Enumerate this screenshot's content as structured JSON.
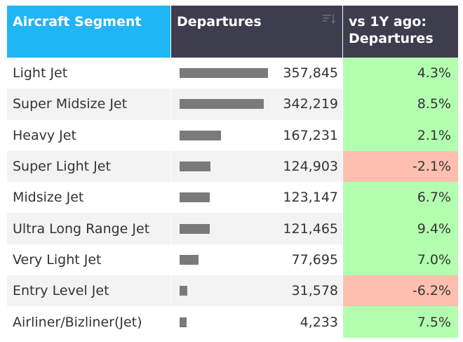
{
  "colors": {
    "header_segment_bg": "#1fb6f5",
    "header_dark_bg": "#3e3d4d",
    "bar": "#7a7a7a",
    "positive": "#b3ffb0",
    "negative": "#ffbfb0"
  },
  "header": {
    "segment": "Aircraft Segment",
    "departures": "Departures",
    "yoy_line1": "vs 1Y ago:",
    "yoy_line2": "Departures",
    "sort_icon": "sort-descending-icon"
  },
  "rows": [
    {
      "segment": "Light Jet",
      "departures": "357,845",
      "value": 357845,
      "yoy": "4.3%",
      "trend": "pos"
    },
    {
      "segment": "Super Midsize Jet",
      "departures": "342,219",
      "value": 342219,
      "yoy": "8.5%",
      "trend": "pos"
    },
    {
      "segment": "Heavy Jet",
      "departures": "167,231",
      "value": 167231,
      "yoy": "2.1%",
      "trend": "pos"
    },
    {
      "segment": "Super Light Jet",
      "departures": "124,903",
      "value": 124903,
      "yoy": "-2.1%",
      "trend": "neg"
    },
    {
      "segment": "Midsize Jet",
      "departures": "123,147",
      "value": 123147,
      "yoy": "6.7%",
      "trend": "pos"
    },
    {
      "segment": "Ultra Long Range Jet",
      "departures": "121,465",
      "value": 121465,
      "yoy": "9.4%",
      "trend": "pos"
    },
    {
      "segment": "Very Light Jet",
      "departures": "77,695",
      "value": 77695,
      "yoy": "7.0%",
      "trend": "pos"
    },
    {
      "segment": "Entry Level Jet",
      "departures": "31,578",
      "value": 31578,
      "yoy": "-6.2%",
      "trend": "neg"
    },
    {
      "segment": "Airliner/Bizliner(Jet)",
      "departures": "4,233",
      "value": 4233,
      "yoy": "7.5%",
      "trend": "pos"
    }
  ]
}
